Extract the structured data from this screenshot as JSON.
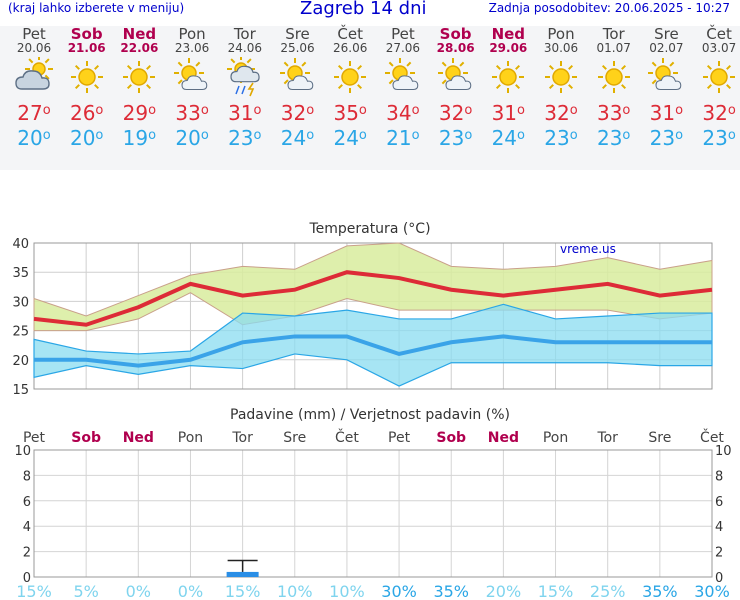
{
  "header": {
    "menu_hint": "(kraj lahko izberete v meniju)",
    "title": "Zagreb 14 dni",
    "last_update": "Zadnja posodobitev: 20.06.2025 - 10:27"
  },
  "colors": {
    "title_blue": "#0000cc",
    "weekend": "#b0004e",
    "max_temp": "#dd2b37",
    "min_temp": "#2aa6e6",
    "max_band": "#d8ec9e",
    "min_band": "#8adcf0",
    "overlap": "#84cc7c",
    "precip_bar": "#2a8ee6",
    "prob_text": "#7fd4ee"
  },
  "days": [
    {
      "name": "Pet",
      "date": "20.06",
      "weekend": false,
      "icon": "partly-cloudy-icon",
      "max": "27",
      "min": "20",
      "prob": "15%"
    },
    {
      "name": "Sob",
      "date": "21.06",
      "weekend": true,
      "icon": "sun-icon",
      "max": "26",
      "min": "20",
      "prob": "5%"
    },
    {
      "name": "Ned",
      "date": "22.06",
      "weekend": true,
      "icon": "sun-icon",
      "max": "29",
      "min": "19",
      "prob": "0%"
    },
    {
      "name": "Pon",
      "date": "23.06",
      "weekend": false,
      "icon": "sun-cloud-icon",
      "max": "33",
      "min": "20",
      "prob": "0%"
    },
    {
      "name": "Tor",
      "date": "24.06",
      "weekend": false,
      "icon": "sun-rain-storm-icon",
      "max": "31",
      "min": "23",
      "prob": "15%"
    },
    {
      "name": "Sre",
      "date": "25.06",
      "weekend": false,
      "icon": "sun-cloud-icon",
      "max": "32",
      "min": "24",
      "prob": "10%"
    },
    {
      "name": "Čet",
      "date": "26.06",
      "weekend": false,
      "icon": "sun-icon",
      "max": "35",
      "min": "24",
      "prob": "10%"
    },
    {
      "name": "Pet",
      "date": "27.06",
      "weekend": false,
      "icon": "sun-cloud-icon",
      "max": "34",
      "min": "21",
      "prob": "30%"
    },
    {
      "name": "Sob",
      "date": "28.06",
      "weekend": true,
      "icon": "sun-cloud-icon",
      "max": "32",
      "min": "23",
      "prob": "35%"
    },
    {
      "name": "Ned",
      "date": "29.06",
      "weekend": true,
      "icon": "sun-icon",
      "max": "31",
      "min": "24",
      "prob": "20%"
    },
    {
      "name": "Pon",
      "date": "30.06",
      "weekend": false,
      "icon": "sun-icon",
      "max": "32",
      "min": "23",
      "prob": "15%"
    },
    {
      "name": "Tor",
      "date": "01.07",
      "weekend": false,
      "icon": "sun-icon",
      "max": "33",
      "min": "23",
      "prob": "25%"
    },
    {
      "name": "Sre",
      "date": "02.07",
      "weekend": false,
      "icon": "sun-cloud-icon",
      "max": "31",
      "min": "23",
      "prob": "35%"
    },
    {
      "name": "Čet",
      "date": "03.07",
      "weekend": false,
      "icon": "sun-icon",
      "max": "32",
      "min": "23",
      "prob": "30%"
    }
  ],
  "degree_mark": "o",
  "chart_data": [
    {
      "type": "line",
      "title": "Temperatura (°C)",
      "watermark": "vreme.us",
      "categories": [
        "20.06",
        "21.06",
        "22.06",
        "23.06",
        "24.06",
        "25.06",
        "26.06",
        "27.06",
        "28.06",
        "29.06",
        "30.06",
        "01.07",
        "02.07",
        "03.07"
      ],
      "ylim": [
        15,
        40
      ],
      "yticks": [
        15,
        20,
        25,
        30,
        35,
        40
      ],
      "grid": true,
      "series": [
        {
          "values": [
            27,
            26,
            29,
            33,
            31,
            32,
            35,
            34,
            32,
            31,
            32,
            33,
            31,
            32
          ]
        },
        {
          "values": [
            20,
            20,
            19,
            20,
            23,
            24,
            24,
            21,
            23,
            24,
            23,
            23,
            23,
            23
          ]
        }
      ],
      "bands": {
        "max_high": [
          30.5,
          27.5,
          31,
          34.5,
          36,
          35.5,
          39.5,
          40,
          36,
          35.5,
          36,
          37.5,
          35.5,
          37
        ],
        "max_low": [
          25,
          25,
          27,
          31.5,
          26,
          27.5,
          30.5,
          28.5,
          28.5,
          28.5,
          28.5,
          28.5,
          27,
          28
        ],
        "min_high": [
          23.5,
          21.5,
          21,
          21.5,
          28,
          27.5,
          28.5,
          27,
          27,
          29.5,
          27,
          27.5,
          28,
          28
        ],
        "min_low": [
          17,
          19,
          17.5,
          19,
          18.5,
          21,
          20,
          15.5,
          19.5,
          19.5,
          19.5,
          19.5,
          19,
          19
        ]
      }
    },
    {
      "type": "bar",
      "title": "Padavine (mm) / Verjetnost padavin (%)",
      "categories": [
        "Pet",
        "Sob",
        "Ned",
        "Pon",
        "Tor",
        "Sre",
        "Čet",
        "Pet",
        "Sob",
        "Ned",
        "Pon",
        "Tor",
        "Sre",
        "Čet"
      ],
      "ylim": [
        0,
        10
      ],
      "yticks": [
        0,
        2,
        4,
        6,
        8,
        10
      ],
      "grid": true,
      "values": [
        0,
        0,
        0,
        0,
        0.4,
        0,
        0,
        0,
        0,
        0,
        0,
        0,
        0,
        0
      ],
      "range_high": [
        0,
        0,
        0,
        0,
        1.3,
        0,
        0,
        0,
        0,
        0,
        0,
        0,
        0,
        0
      ],
      "probability": [
        "15%",
        "5%",
        "0%",
        "0%",
        "15%",
        "10%",
        "10%",
        "30%",
        "35%",
        "20%",
        "15%",
        "25%",
        "35%",
        "30%"
      ]
    }
  ]
}
